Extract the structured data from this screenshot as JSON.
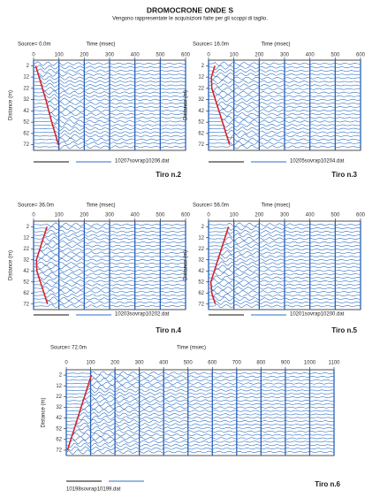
{
  "title": "DROMOCRONE ONDE S",
  "subtitle": "Vengono rappresentate le acquisizioni fatte per gli scoppi di taglio.",
  "chart_data": [
    {
      "type": "line",
      "source_label": "Source= 0.0m",
      "xlabel": "Time (msec)",
      "ylabel": "Distance (m)",
      "xlim": [
        0,
        600
      ],
      "xticks": [
        0,
        100,
        200,
        300,
        400,
        500,
        600
      ],
      "ylim": [
        -3,
        77
      ],
      "yticks": [
        2,
        12,
        22,
        32,
        42,
        52,
        62,
        72
      ],
      "y_inverted": true,
      "x": [
        8,
        22,
        35,
        48,
        60,
        72,
        85,
        98
      ],
      "values": [
        2,
        12,
        22,
        32,
        42,
        52,
        62,
        72
      ],
      "color": "#d8232a",
      "file_label": "10207sovrap10206.dat",
      "shot_label": "Tiro n.2"
    },
    {
      "type": "line",
      "source_label": "Source= 16.0m",
      "xlabel": "Time (msec)",
      "ylabel": "Distance (m)",
      "xlim": [
        0,
        600
      ],
      "xticks": [
        0,
        100,
        200,
        300,
        400,
        500,
        600
      ],
      "ylim": [
        -3,
        77
      ],
      "yticks": [
        2,
        12,
        22,
        32,
        42,
        52,
        62,
        72
      ],
      "y_inverted": true,
      "x": [
        25,
        11,
        13,
        27,
        41,
        55,
        69,
        83
      ],
      "values": [
        2,
        12,
        22,
        32,
        42,
        52,
        62,
        72
      ],
      "color": "#d8232a",
      "file_label": "10205sovrap10204.dat",
      "shot_label": "Tiro n.3"
    },
    {
      "type": "line",
      "source_label": "Source= 36.0m",
      "xlabel": "Time (msec)",
      "ylabel": "Distance (m)",
      "xlim": [
        0,
        600
      ],
      "xticks": [
        0,
        100,
        200,
        300,
        400,
        500,
        600
      ],
      "ylim": [
        -3,
        77
      ],
      "yticks": [
        2,
        12,
        22,
        32,
        42,
        52,
        62,
        72
      ],
      "y_inverted": true,
      "x": [
        53,
        39,
        25,
        11,
        13,
        27,
        41,
        55
      ],
      "values": [
        2,
        12,
        22,
        32,
        42,
        52,
        62,
        72
      ],
      "color": "#d8232a",
      "file_label": "10203sovrap10202.dat",
      "shot_label": "Tiro n.4"
    },
    {
      "type": "line",
      "source_label": "Source= 56.0m",
      "xlabel": "Time (msec)",
      "ylabel": "Distance (m)",
      "xlim": [
        0,
        600
      ],
      "xticks": [
        0,
        100,
        200,
        300,
        400,
        500,
        600
      ],
      "ylim": [
        -3,
        77
      ],
      "yticks": [
        2,
        12,
        22,
        32,
        42,
        52,
        62,
        72
      ],
      "y_inverted": true,
      "x": [
        79,
        65,
        51,
        37,
        23,
        9,
        13,
        27
      ],
      "values": [
        2,
        12,
        22,
        32,
        42,
        52,
        62,
        72
      ],
      "color": "#d8232a",
      "file_label": "10201sovrap10200.dat",
      "shot_label": "Tiro n.5"
    },
    {
      "type": "line",
      "source_label": "Source= 72.0m",
      "xlabel": "Time (msec)",
      "ylabel": "Distance (m)",
      "xlim": [
        0,
        1100
      ],
      "xticks": [
        0,
        100,
        200,
        300,
        400,
        500,
        600,
        700,
        800,
        900,
        1000,
        1100
      ],
      "ylim": [
        -3,
        77
      ],
      "yticks": [
        2,
        12,
        22,
        32,
        42,
        52,
        62,
        72
      ],
      "y_inverted": true,
      "x": [
        103,
        89,
        75,
        61,
        47,
        33,
        19,
        5
      ],
      "values": [
        2,
        12,
        22,
        32,
        42,
        52,
        62,
        72
      ],
      "color": "#d8232a",
      "file_label": "10198sovrap10199.dat",
      "shot_label": "Tiro n.6"
    }
  ]
}
